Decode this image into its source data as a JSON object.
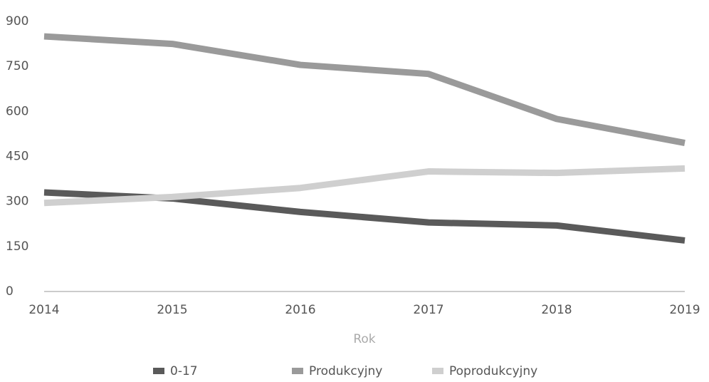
{
  "chart_data": {
    "type": "line",
    "x_label": "Rok",
    "x": [
      2014,
      2015,
      2016,
      2017,
      2018,
      2019
    ],
    "xlim": [
      2014,
      2019
    ],
    "xticks": [
      2014,
      2015,
      2016,
      2017,
      2018,
      2019
    ],
    "ylim": [
      0,
      900
    ],
    "yticks": [
      0,
      150,
      300,
      450,
      600,
      750,
      900
    ],
    "grid": false,
    "legend": "bottom",
    "series": [
      {
        "name": "0-17",
        "color": "#5a5a5a",
        "values": [
          330,
          310,
          265,
          230,
          220,
          170
        ]
      },
      {
        "name": "Produkcyjny",
        "color": "#9a9a9a",
        "values": [
          850,
          825,
          755,
          725,
          575,
          495
        ]
      },
      {
        "name": "Poprodukcyjny",
        "color": "#cfcfcf",
        "values": [
          295,
          315,
          345,
          400,
          395,
          410
        ]
      }
    ]
  }
}
